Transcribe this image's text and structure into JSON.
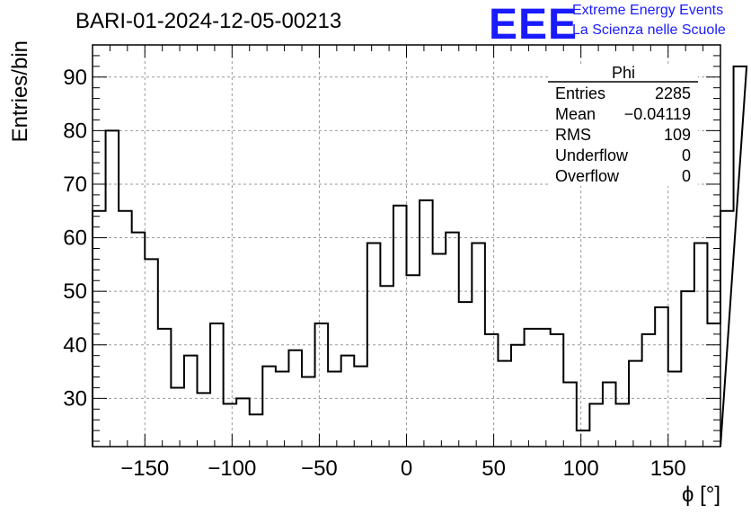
{
  "header": {
    "title": "BARI-01-2024-12-05-00213",
    "logo": "EEE",
    "logo_line1": "Extreme Energy Events",
    "logo_line2": "La Scienza nelle Scuole"
  },
  "stats": {
    "name": "Phi",
    "rows": [
      {
        "label": "Entries",
        "value": "2285"
      },
      {
        "label": "Mean",
        "value": "−0.04119"
      },
      {
        "label": "RMS",
        "value": "109"
      },
      {
        "label": "Underflow",
        "value": "0"
      },
      {
        "label": "Overflow",
        "value": "0"
      }
    ]
  },
  "chart_data": {
    "type": "histogram",
    "title": "BARI-01-2024-12-05-00213",
    "xlabel": "ϕ [°]",
    "ylabel": "Entries/bin",
    "xlim": [
      -180,
      180
    ],
    "ylim": [
      21,
      96
    ],
    "grid": true,
    "bin_width": 7.5,
    "x_ticks": [
      -150,
      -100,
      -50,
      0,
      50,
      100,
      150
    ],
    "x_tick_labels": [
      "−150",
      "−100",
      "−50",
      "0",
      "50",
      "100",
      "150"
    ],
    "y_ticks": [
      30,
      40,
      50,
      60,
      70,
      80,
      90
    ],
    "values": [
      65,
      80,
      65,
      61,
      56,
      43,
      32,
      38,
      31,
      44,
      29,
      30,
      27,
      36,
      35,
      39,
      34,
      44,
      35,
      38,
      36,
      59,
      51,
      66,
      53,
      67,
      57,
      61,
      48,
      59,
      42,
      37,
      40,
      43,
      43,
      42,
      33,
      24,
      29,
      33,
      29,
      37,
      42,
      47,
      35,
      50,
      59,
      44,
      65,
      92
    ]
  }
}
